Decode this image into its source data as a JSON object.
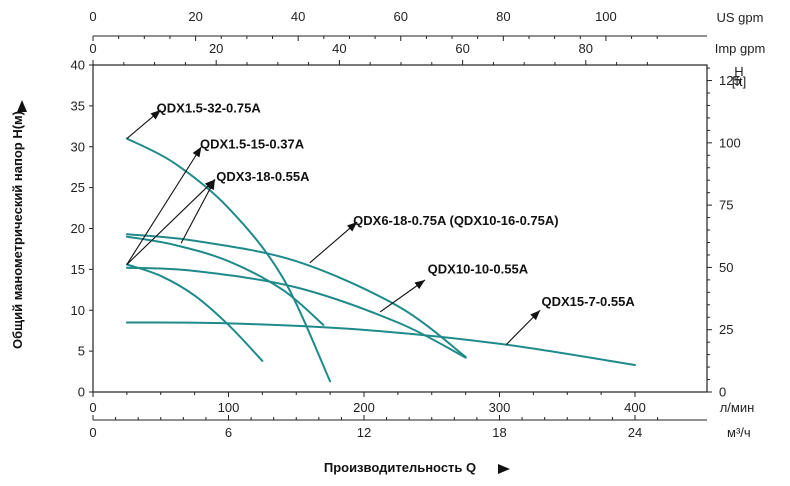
{
  "chart_data": {
    "type": "line",
    "xlabel": "Производительность Q",
    "ylabel": "Общий манометрический напор H(м)",
    "x_unit_primary": "л/мин",
    "x_unit_secondary": "м³/ч",
    "top_axis_1_unit": "US gpm",
    "top_axis_2_unit": "Imp gpm",
    "y_right_unit_top": "H",
    "y_right_unit_bottom": "[ft]",
    "xlim": [
      0,
      420
    ],
    "ylim": [
      0,
      40
    ],
    "x_ticks": [
      0,
      100,
      200,
      300,
      400
    ],
    "x_ticks_m3h": [
      "0",
      "6",
      "12",
      "18",
      "24"
    ],
    "y_ticks": [
      0,
      5,
      10,
      15,
      20,
      25,
      30,
      35,
      40
    ],
    "y_ticks_ft": [
      "0",
      "25",
      "50",
      "75",
      "100",
      "125"
    ],
    "us_gpm_ticks": [
      "0",
      "20",
      "40",
      "60",
      "80",
      "100"
    ],
    "imp_gpm_ticks": [
      "0",
      "20",
      "40",
      "60",
      "80"
    ],
    "series": [
      {
        "name": "QDX1.5-32-0.75A",
        "x": [
          25,
          60,
          100,
          140,
          175
        ],
        "y": [
          31,
          28,
          22.5,
          14,
          1.3
        ]
      },
      {
        "name": "QDX1.5-15-0.37A",
        "x": [
          25,
          50,
          75,
          100,
          125
        ],
        "y": [
          15.6,
          14.2,
          11.8,
          8.2,
          3.8
        ]
      },
      {
        "name": "QDX3-18-0.55A",
        "x": [
          25,
          60,
          100,
          140,
          170
        ],
        "y": [
          19,
          18,
          16,
          12.5,
          8.2
        ]
      },
      {
        "name": "QDX6-18-0.75A (QDX10-16-0.75A)",
        "x": [
          25,
          75,
          150,
          225,
          275
        ],
        "y": [
          19.3,
          18.5,
          16,
          10.5,
          4.3
        ]
      },
      {
        "name": "QDX10-10-0.55A",
        "x": [
          25,
          75,
          150,
          225,
          275
        ],
        "y": [
          15.2,
          14.8,
          12.8,
          8.5,
          4.2
        ]
      },
      {
        "name": "QDX15-7-0.55A",
        "x": [
          25,
          100,
          200,
          300,
          400
        ],
        "y": [
          8.5,
          8.4,
          7.6,
          5.9,
          3.3
        ]
      }
    ],
    "arrows": [
      {
        "label_index": 0,
        "from": [
          25,
          31
        ],
        "to": [
          50,
          34.5
        ]
      },
      {
        "label_index": 1,
        "from": [
          25,
          15.6
        ],
        "to": [
          80,
          30
        ]
      },
      {
        "label_index": 2,
        "from": [
          25,
          15.6
        ],
        "to": [
          90,
          26
        ]
      },
      {
        "label_index": 2,
        "from": [
          65,
          18.2
        ],
        "to": [
          90,
          26
        ]
      },
      {
        "label_index": 3,
        "from": [
          160,
          15.8
        ],
        "to": [
          195,
          20.8
        ]
      },
      {
        "label_index": 4,
        "from": [
          212,
          9.8
        ],
        "to": [
          245,
          13.7
        ]
      },
      {
        "label_index": 5,
        "from": [
          305,
          5.8
        ],
        "to": [
          330,
          10
        ]
      }
    ],
    "labels_pos_data": [
      {
        "text_index": 0,
        "x": 47,
        "y": 34.7
      },
      {
        "text_index": 1,
        "x": 79,
        "y": 30.3
      },
      {
        "text_index": 2,
        "x": 91,
        "y": 26.3
      },
      {
        "text_index": 3,
        "x": 192,
        "y": 20.9
      },
      {
        "text_index": 4,
        "x": 247,
        "y": 15
      },
      {
        "text_index": 5,
        "x": 331,
        "y": 11
      }
    ],
    "line_color": "#1f8a8a",
    "grid": true
  }
}
